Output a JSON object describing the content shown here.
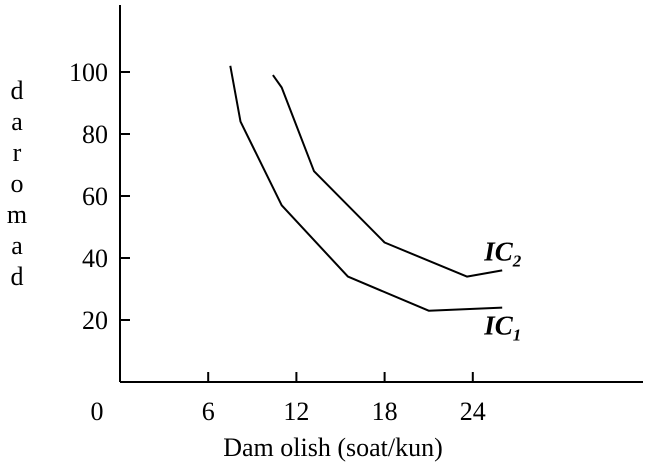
{
  "chart_data": {
    "type": "line",
    "title": "",
    "xlabel": "Dam olish (soat/kun)",
    "ylabel": "daromad",
    "x_ticks": [
      "6",
      "12",
      "18",
      "24"
    ],
    "x_origin_label": "0",
    "y_ticks": [
      "20",
      "40",
      "60",
      "80",
      "100"
    ],
    "xlim": [
      0,
      32
    ],
    "ylim": [
      0,
      115
    ],
    "grid": false,
    "series": [
      {
        "name": "IC1",
        "label_main": "IC",
        "label_sub": "1",
        "x": [
          7.5,
          8.2,
          11,
          15.5,
          21,
          26
        ],
        "y": [
          102,
          84,
          57,
          34,
          23,
          24
        ]
      },
      {
        "name": "IC2",
        "label_main": "IC",
        "label_sub": "2",
        "x": [
          10.4,
          11,
          13.2,
          18,
          23.6,
          26
        ],
        "y": [
          99,
          95,
          68,
          45,
          34,
          36
        ]
      }
    ]
  }
}
